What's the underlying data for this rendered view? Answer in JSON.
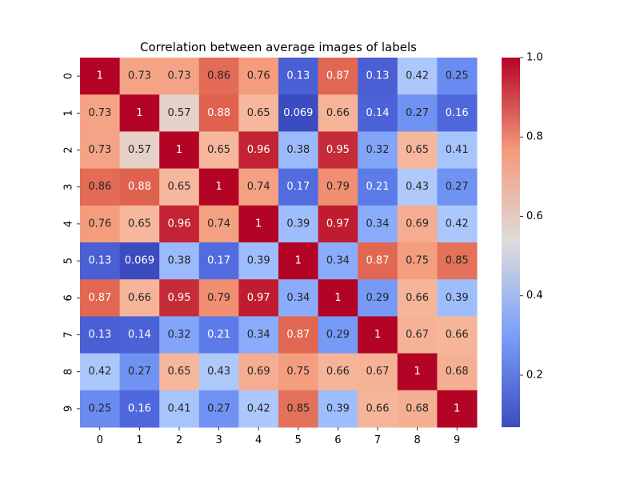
{
  "chart_data": {
    "type": "heatmap",
    "title": "Correlation between average images of labels",
    "xlabel": "",
    "ylabel": "",
    "x_labels": [
      "0",
      "1",
      "2",
      "3",
      "4",
      "5",
      "6",
      "7",
      "8",
      "9"
    ],
    "y_labels": [
      "0",
      "1",
      "2",
      "3",
      "4",
      "5",
      "6",
      "7",
      "8",
      "9"
    ],
    "cell_labels": [
      [
        "1",
        "0.73",
        "0.73",
        "0.86",
        "0.76",
        "0.13",
        "0.87",
        "0.13",
        "0.42",
        "0.25"
      ],
      [
        "0.73",
        "1",
        "0.57",
        "0.88",
        "0.65",
        "0.069",
        "0.66",
        "0.14",
        "0.27",
        "0.16"
      ],
      [
        "0.73",
        "0.57",
        "1",
        "0.65",
        "0.96",
        "0.38",
        "0.95",
        "0.32",
        "0.65",
        "0.41"
      ],
      [
        "0.86",
        "0.88",
        "0.65",
        "1",
        "0.74",
        "0.17",
        "0.79",
        "0.21",
        "0.43",
        "0.27"
      ],
      [
        "0.76",
        "0.65",
        "0.96",
        "0.74",
        "1",
        "0.39",
        "0.97",
        "0.34",
        "0.69",
        "0.42"
      ],
      [
        "0.13",
        "0.069",
        "0.38",
        "0.17",
        "0.39",
        "1",
        "0.34",
        "0.87",
        "0.75",
        "0.85"
      ],
      [
        "0.87",
        "0.66",
        "0.95",
        "0.79",
        "0.97",
        "0.34",
        "1",
        "0.29",
        "0.66",
        "0.39"
      ],
      [
        "0.13",
        "0.14",
        "0.32",
        "0.21",
        "0.34",
        "0.87",
        "0.29",
        "1",
        "0.67",
        "0.66"
      ],
      [
        "0.42",
        "0.27",
        "0.65",
        "0.43",
        "0.69",
        "0.75",
        "0.66",
        "0.67",
        "1",
        "0.68"
      ],
      [
        "0.25",
        "0.16",
        "0.41",
        "0.27",
        "0.42",
        "0.85",
        "0.39",
        "0.66",
        "0.68",
        "1"
      ]
    ],
    "colorbar": {
      "range": [
        0.069,
        1.0
      ],
      "ticks": [
        0.2,
        0.4,
        0.6,
        0.8,
        1.0
      ],
      "tick_labels": [
        "0.2",
        "0.4",
        "0.6",
        "0.8",
        "1.0"
      ],
      "colormap": "coolwarm"
    },
    "grid": false
  }
}
